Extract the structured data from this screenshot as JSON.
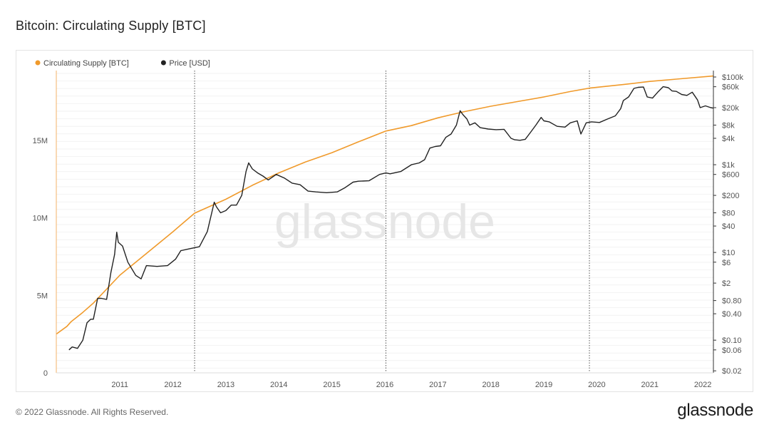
{
  "page": {
    "title": "Bitcoin: Circulating Supply [BTC]",
    "copyright": "© 2022 Glassnode. All Rights Reserved.",
    "brand": "glassnode",
    "watermark": "glassnode"
  },
  "chart_data": {
    "type": "line",
    "title": "Bitcoin: Circulating Supply [BTC]",
    "x_range": [
      2010.3,
      2022.7
    ],
    "x_tick_labels": [
      "2011",
      "2012",
      "2013",
      "2014",
      "2015",
      "2016",
      "2017",
      "2018",
      "2019",
      "2020",
      "2021",
      "2022"
    ],
    "x_tick_values": [
      2011,
      2012,
      2013,
      2014,
      2015,
      2016,
      2017,
      2018,
      2019,
      2020,
      2021,
      2022
    ],
    "halvings": [
      2012.91,
      2016.52,
      2020.36
    ],
    "legend_position": "top-left",
    "grid": true,
    "left_axis": {
      "label": "",
      "ylim": [
        0,
        19500000
      ],
      "tick_values": [
        0,
        5000000,
        10000000,
        15000000
      ],
      "tick_labels": [
        "0",
        "5M",
        "10M",
        "15M"
      ]
    },
    "right_axis": {
      "label": "",
      "scale": "log",
      "ylim": [
        0.018,
        140000
      ],
      "tick_values": [
        100000,
        60000,
        20000,
        8000,
        4000,
        1000,
        600,
        200,
        80,
        40,
        10,
        6,
        2,
        0.8,
        0.4,
        0.1,
        0.06,
        0.02
      ],
      "tick_labels": [
        "$100k",
        "$60k",
        "$20k",
        "$8k",
        "$4k",
        "$1k",
        "$600",
        "$200",
        "$80",
        "$40",
        "$10",
        "$6",
        "$2",
        "$0.80",
        "$0.40",
        "$0.10",
        "$0.06",
        "$0.02"
      ]
    },
    "series": [
      {
        "name": "Circulating Supply [BTC]",
        "color": "#f09a2b",
        "axis": "left",
        "x": [
          2010.3,
          2010.5,
          2010.58,
          2010.8,
          2011.0,
          2011.5,
          2012.0,
          2012.5,
          2012.91,
          2013.5,
          2014.0,
          2014.5,
          2015.0,
          2015.5,
          2016.0,
          2016.52,
          2017.0,
          2017.5,
          2018.0,
          2018.5,
          2019.0,
          2019.5,
          2020.0,
          2020.36,
          2021.0,
          2021.5,
          2022.0,
          2022.7
        ],
        "values": [
          2500000,
          3000000,
          3300000,
          3900000,
          4500000,
          6300000,
          7700000,
          9100000,
          10300000,
          11200000,
          12100000,
          12900000,
          13600000,
          14200000,
          14900000,
          15600000,
          15950000,
          16450000,
          16850000,
          17200000,
          17500000,
          17800000,
          18150000,
          18370000,
          18600000,
          18800000,
          18950000,
          19150000
        ]
      },
      {
        "name": "Price [USD]",
        "color": "#222222",
        "axis": "right",
        "x": [
          2010.54,
          2010.6,
          2010.7,
          2010.8,
          2010.88,
          2010.95,
          2011.0,
          2011.08,
          2011.15,
          2011.25,
          2011.33,
          2011.4,
          2011.44,
          2011.47,
          2011.55,
          2011.65,
          2011.8,
          2011.9,
          2012.0,
          2012.2,
          2012.4,
          2012.55,
          2012.65,
          2012.8,
          2013.0,
          2013.15,
          2013.28,
          2013.32,
          2013.4,
          2013.5,
          2013.6,
          2013.7,
          2013.8,
          2013.88,
          2013.93,
          2014.0,
          2014.1,
          2014.2,
          2014.3,
          2014.45,
          2014.6,
          2014.75,
          2014.9,
          2015.05,
          2015.2,
          2015.4,
          2015.6,
          2015.75,
          2015.9,
          2016.0,
          2016.2,
          2016.4,
          2016.52,
          2016.6,
          2016.8,
          2017.0,
          2017.15,
          2017.25,
          2017.35,
          2017.45,
          2017.55,
          2017.65,
          2017.75,
          2017.85,
          2017.92,
          2017.97,
          2018.05,
          2018.1,
          2018.2,
          2018.3,
          2018.45,
          2018.6,
          2018.75,
          2018.88,
          2018.95,
          2019.05,
          2019.15,
          2019.25,
          2019.35,
          2019.45,
          2019.5,
          2019.6,
          2019.75,
          2019.9,
          2020.0,
          2020.13,
          2020.2,
          2020.3,
          2020.4,
          2020.55,
          2020.7,
          2020.85,
          2020.95,
          2021.0,
          2021.1,
          2021.2,
          2021.28,
          2021.38,
          2021.45,
          2021.55,
          2021.65,
          2021.75,
          2021.85,
          2021.92,
          2022.0,
          2022.1,
          2022.2,
          2022.3,
          2022.4,
          2022.45,
          2022.55,
          2022.65,
          2022.7
        ],
        "values": [
          0.06,
          0.07,
          0.065,
          0.1,
          0.25,
          0.3,
          0.3,
          0.9,
          0.9,
          0.85,
          3.5,
          9,
          29,
          17,
          14,
          6,
          3,
          2.5,
          5,
          4.8,
          5,
          7,
          11,
          12,
          13.5,
          30,
          140,
          110,
          80,
          90,
          120,
          120,
          200,
          700,
          1100,
          800,
          650,
          550,
          450,
          600,
          500,
          380,
          350,
          250,
          240,
          230,
          240,
          300,
          400,
          420,
          430,
          600,
          650,
          620,
          700,
          1000,
          1100,
          1300,
          2400,
          2600,
          2700,
          4200,
          5000,
          8000,
          17000,
          14000,
          11000,
          8000,
          9000,
          7000,
          6500,
          6300,
          6400,
          4000,
          3700,
          3600,
          3800,
          5500,
          8000,
          12000,
          10000,
          9500,
          7500,
          7200,
          9000,
          10000,
          5000,
          9000,
          9500,
          9200,
          11000,
          13000,
          19000,
          29000,
          35000,
          55000,
          58000,
          59000,
          35000,
          33000,
          45000,
          60000,
          57000,
          48000,
          47000,
          40000,
          38000,
          45000,
          30000,
          20000,
          22000,
          20000,
          19500
        ]
      }
    ]
  }
}
